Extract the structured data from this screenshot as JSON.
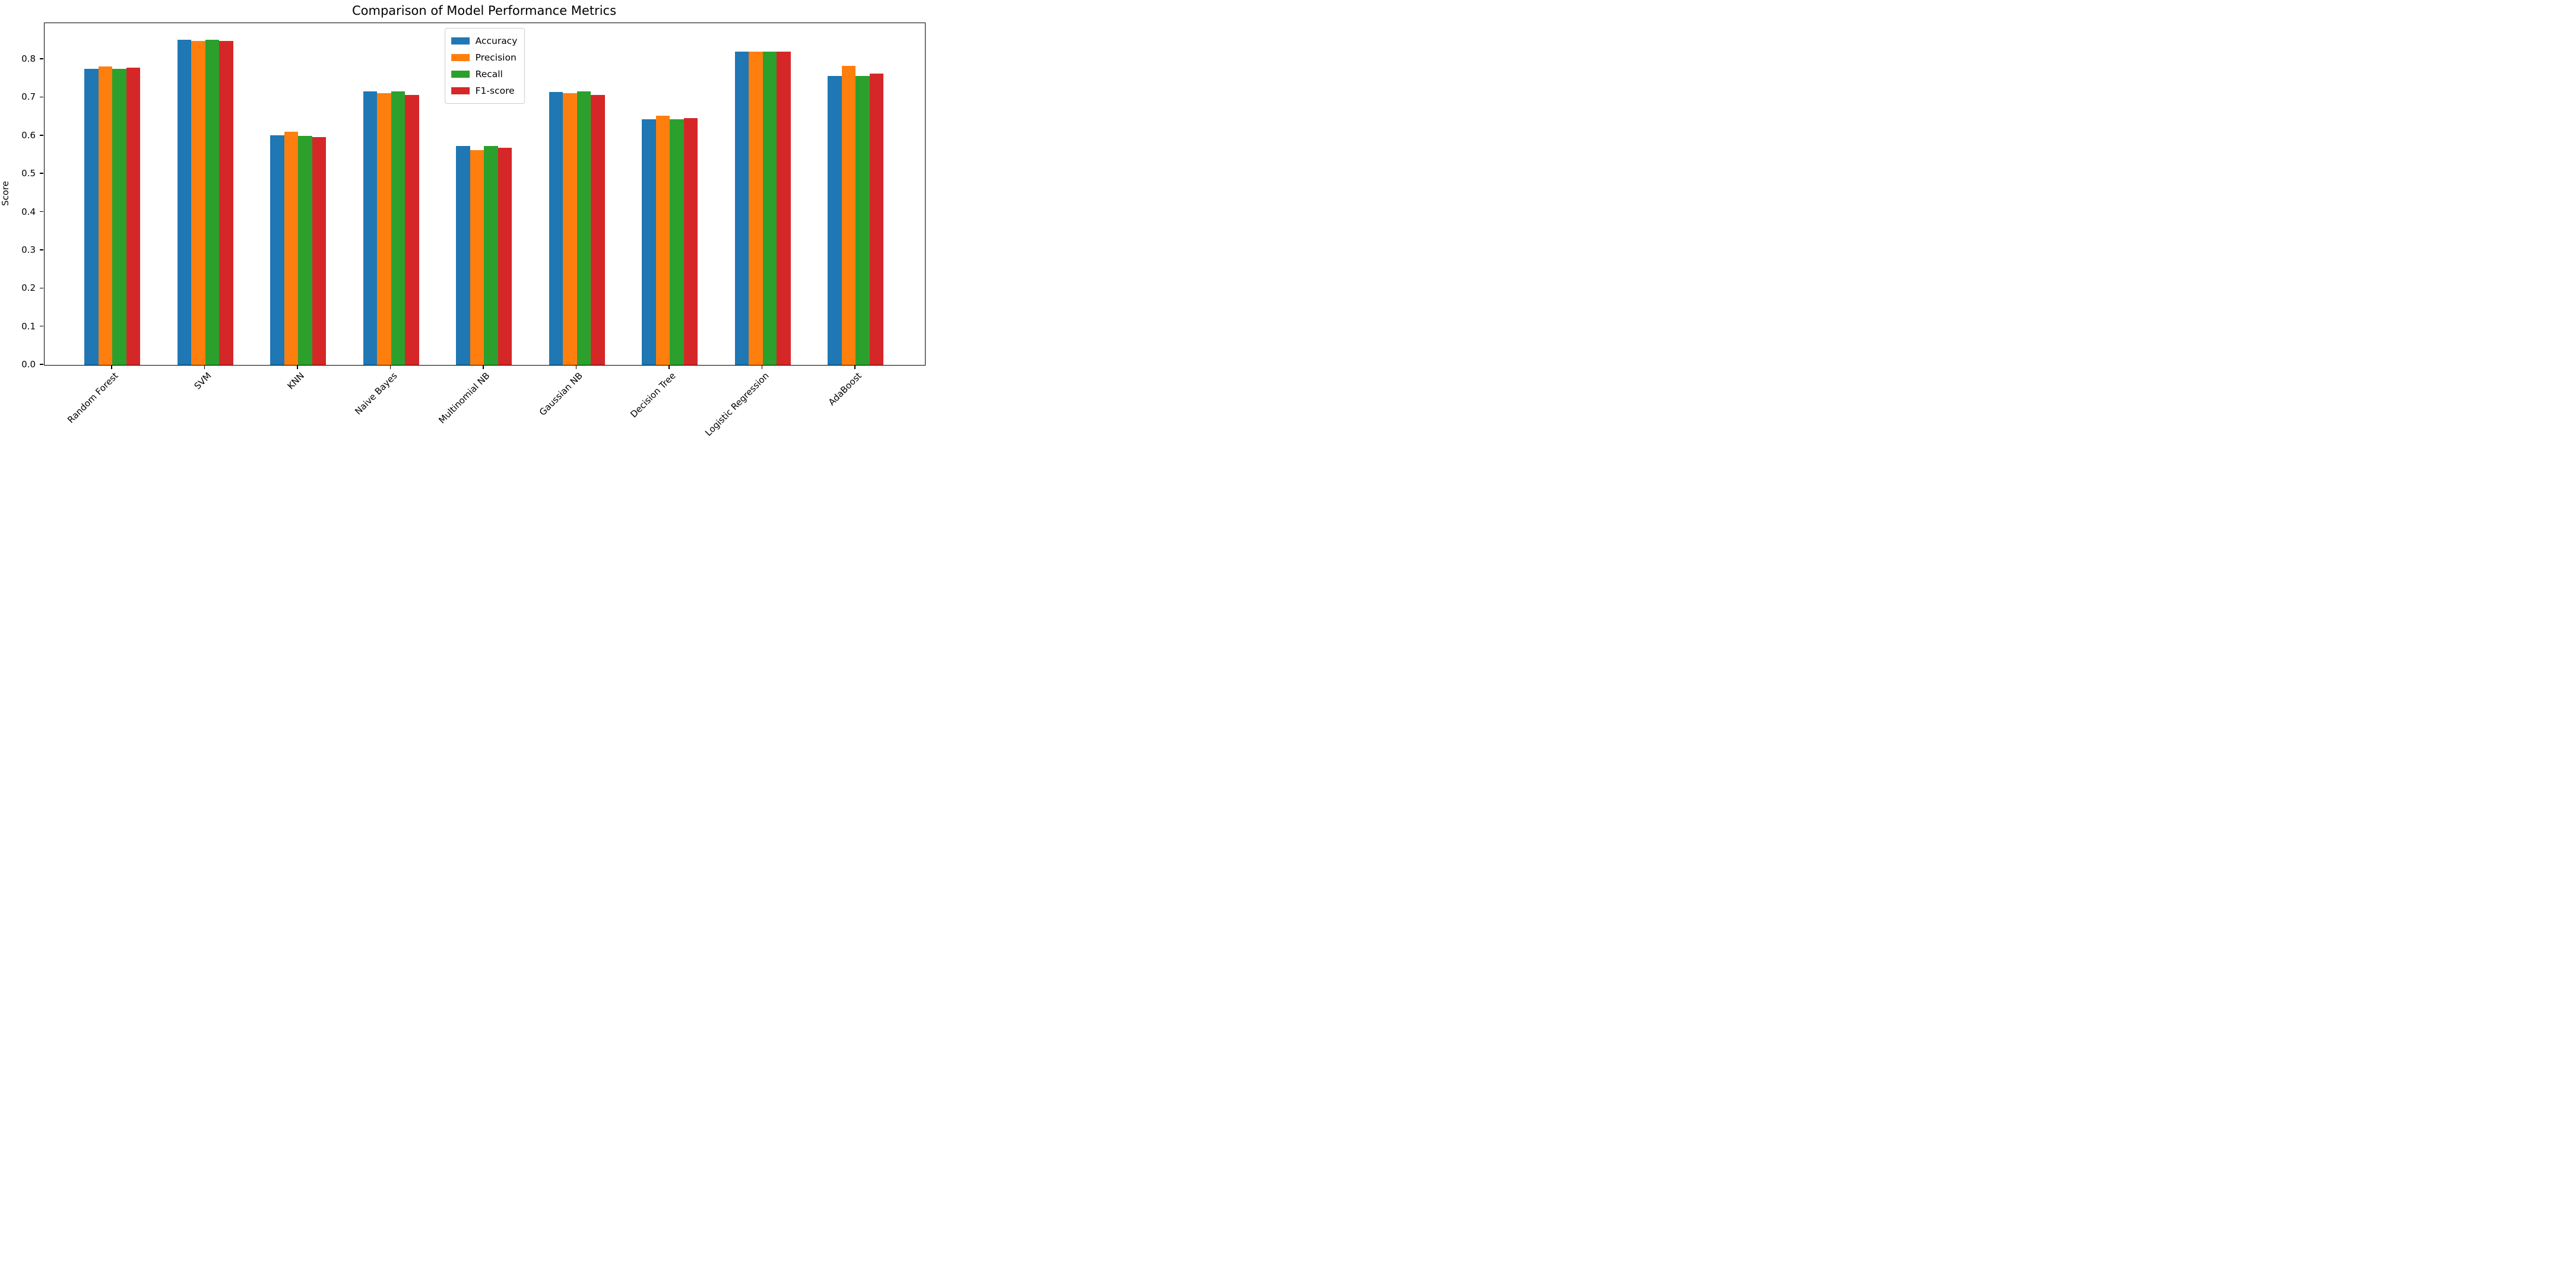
{
  "chart_data": {
    "type": "bar",
    "title": "Comparison of Model Performance Metrics",
    "xlabel": "",
    "ylabel": "Score",
    "categories": [
      "Random Forest",
      "SVM",
      "KNN",
      "Naive Bayes",
      "Multinomial NB",
      "Gaussian NB",
      "Decision Tree",
      "Logistic Regression",
      "AdaBoost"
    ],
    "series": [
      {
        "name": "Accuracy",
        "color": "#1f77b4",
        "values": [
          0.776,
          0.852,
          0.601,
          0.716,
          0.573,
          0.715,
          0.643,
          0.821,
          0.757
        ]
      },
      {
        "name": "Precision",
        "color": "#ff7f0e",
        "values": [
          0.782,
          0.849,
          0.611,
          0.712,
          0.563,
          0.711,
          0.652,
          0.821,
          0.783
        ]
      },
      {
        "name": "Recall",
        "color": "#2ca02c",
        "values": [
          0.775,
          0.852,
          0.6,
          0.716,
          0.573,
          0.716,
          0.643,
          0.821,
          0.756
        ]
      },
      {
        "name": "F1-score",
        "color": "#d62728",
        "values": [
          0.778,
          0.849,
          0.596,
          0.707,
          0.568,
          0.707,
          0.646,
          0.821,
          0.763
        ]
      }
    ],
    "ylim": [
      0,
      0.895
    ],
    "yticks": [
      0.0,
      0.1,
      0.2,
      0.3,
      0.4,
      0.5,
      0.6,
      0.7,
      0.8
    ],
    "grid": false,
    "legend_position": "upper center",
    "x_tick_rotation": 45,
    "spine_color": "#000000",
    "background_color": "#ffffff"
  }
}
